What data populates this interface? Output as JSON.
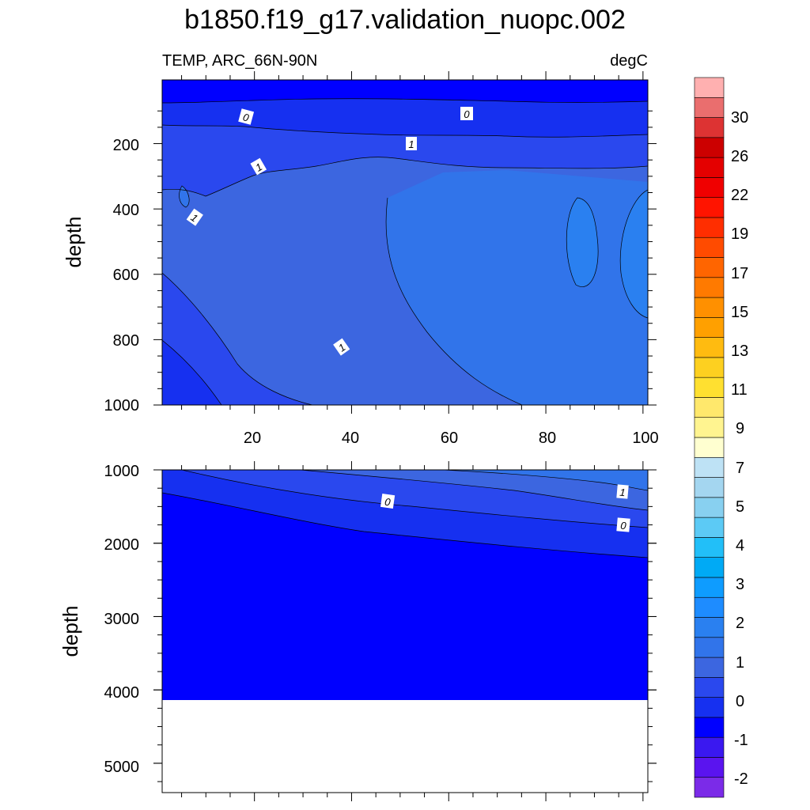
{
  "chart_data": {
    "type": "heatmap",
    "title": "b1850.f19_g17.validation_nuopc.002",
    "variable_label": "TEMP, ARC_66N-90N",
    "units_label": "degC",
    "panels": [
      {
        "name": "upper",
        "xlabel": "",
        "ylabel": "depth",
        "xlim": [
          1,
          101
        ],
        "ylim": [
          1000,
          5
        ],
        "xticks": [
          "20",
          "40",
          "60",
          "80",
          "100"
        ],
        "yticks": [
          "200",
          "400",
          "600",
          "800",
          "1000"
        ],
        "contour_labels": [
          "0",
          "0",
          "1",
          "1",
          "1",
          "1"
        ]
      },
      {
        "name": "lower",
        "xlabel": "",
        "ylabel": "depth",
        "xlim": [
          1,
          101
        ],
        "ylim": [
          5400,
          1000
        ],
        "xticks": [],
        "yticks": [
          "1000",
          "2000",
          "3000",
          "4000",
          "5000"
        ],
        "contour_labels": [
          "0",
          "1",
          "0"
        ],
        "no_data_below": 4110
      }
    ],
    "colorbar": {
      "labels": [
        "30",
        "26",
        "22",
        "19",
        "17",
        "15",
        "13",
        "11",
        "9",
        "7",
        "5",
        "4",
        "3",
        "2",
        "1",
        "0",
        "-1",
        "-2"
      ],
      "colors": [
        "#7b2be8",
        "#5a14ef",
        "#3a18f0",
        "#0000ff",
        "#1630f0",
        "#2a48ee",
        "#3c66e0",
        "#3174ea",
        "#2a80f0",
        "#1e8cff",
        "#0e9cff",
        "#00aaf5",
        "#22bff8",
        "#5ccaf5",
        "#88d0f0",
        "#a4d6f0",
        "#bee2f5",
        "#ffffd0",
        "#fff490",
        "#ffe86c",
        "#ffe030",
        "#fdd020",
        "#ffbb10",
        "#ffa000",
        "#ff9000",
        "#ff7a00",
        "#ff6500",
        "#ff4b00",
        "#ff2e00",
        "#ff1400",
        "#f00000",
        "#e40000",
        "#cc0000",
        "#dd3333",
        "#ea6e6e",
        "#ffb0b0"
      ]
    }
  }
}
